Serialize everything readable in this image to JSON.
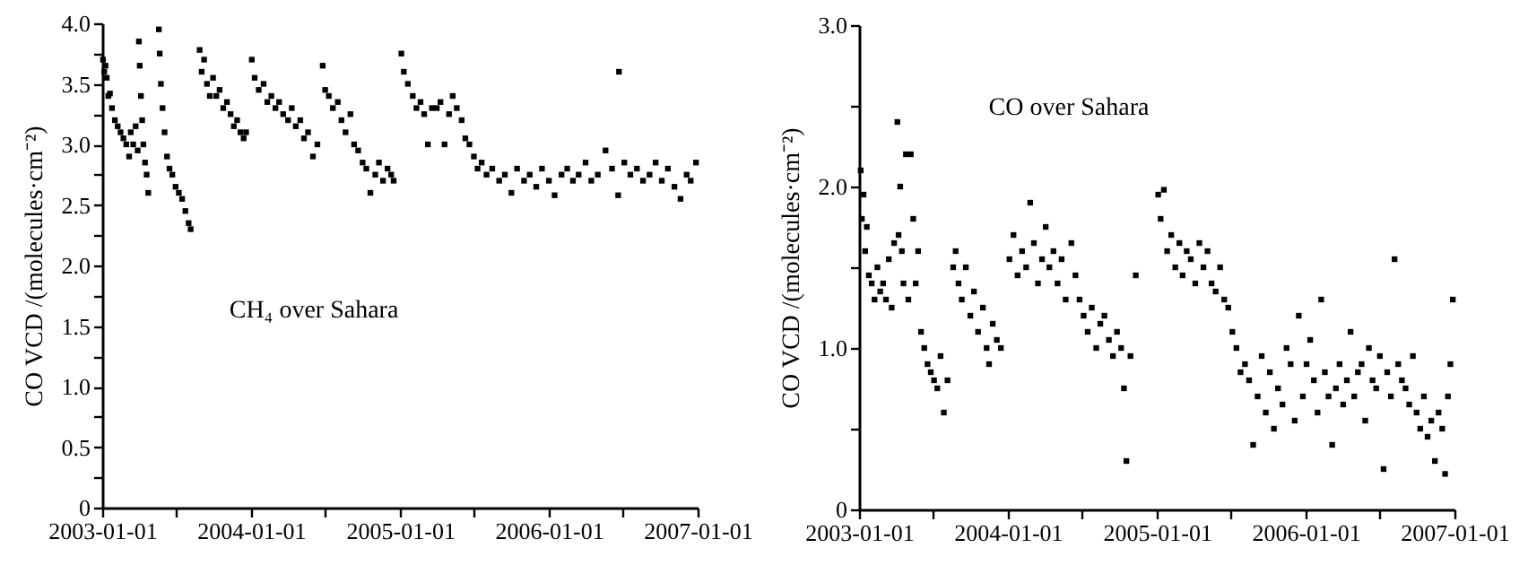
{
  "chart_data": [
    {
      "type": "scatter",
      "ylabel": "CO VCD /(molecules·cm⁻²)",
      "annotations": [
        "CH₄ over Sahara"
      ],
      "marker": "square",
      "grid": false,
      "xlim": [
        "2003-01-01",
        "2007-01-01"
      ],
      "xticks": [
        {
          "value": "2003-01-01",
          "label": "2003-01-01"
        },
        {
          "value": "2003-07-01",
          "label": null
        },
        {
          "value": "2004-01-01",
          "label": "2004-01-01"
        },
        {
          "value": "2004-07-01",
          "label": null
        },
        {
          "value": "2005-01-01",
          "label": "2005-01-01"
        },
        {
          "value": "2005-07-01",
          "label": null
        },
        {
          "value": "2006-01-01",
          "label": "2006-01-01"
        },
        {
          "value": "2006-07-01",
          "label": null
        },
        {
          "value": "2007-01-01",
          "label": "2007-01-01"
        }
      ],
      "ylim": [
        0,
        4
      ],
      "yticks": [
        0,
        {
          "value": 0.25,
          "label": null
        },
        0.5,
        {
          "value": 0.75,
          "label": null
        },
        {
          "value": 1,
          "label": "1.0"
        },
        {
          "value": 1.25,
          "label": null
        },
        1.5,
        {
          "value": 1.75,
          "label": null
        },
        {
          "value": 2,
          "label": "2.0"
        },
        {
          "value": 2.25,
          "label": null
        },
        2.5,
        {
          "value": 2.75,
          "label": null
        },
        {
          "value": 3,
          "label": "3.0"
        },
        {
          "value": 3.25,
          "label": null
        },
        3.5,
        {
          "value": 3.75,
          "label": null
        },
        {
          "value": 4,
          "label": "4.0"
        }
      ],
      "series": [
        {
          "color": "#000000",
          "x": [
            "2003-01-03",
            "2003-01-06",
            "2003-01-09",
            "2003-01-12",
            "2003-01-16",
            "2003-01-20",
            "2003-01-25",
            "2003-02-01",
            "2003-02-08",
            "2003-02-15",
            "2003-02-22",
            "2003-03-01",
            "2003-03-08",
            "2003-03-12",
            "2003-03-18",
            "2003-03-24",
            "2003-03-29",
            "2003-04-01",
            "2003-04-03",
            "2003-04-06",
            "2003-04-09",
            "2003-04-12",
            "2003-04-16",
            "2003-04-20",
            "2003-04-24",
            "2003-05-20",
            "2003-05-22",
            "2003-05-25",
            "2003-05-29",
            "2003-06-03",
            "2003-06-09",
            "2003-06-15",
            "2003-06-22",
            "2003-06-30",
            "2003-07-08",
            "2003-07-16",
            "2003-07-24",
            "2003-08-01",
            "2003-08-06",
            "2003-08-28",
            "2003-09-02",
            "2003-09-08",
            "2003-09-15",
            "2003-09-22",
            "2003-09-30",
            "2003-10-08",
            "2003-10-16",
            "2003-10-25",
            "2003-11-03",
            "2003-11-12",
            "2003-11-20",
            "2003-11-28",
            "2003-12-06",
            "2003-12-14",
            "2003-12-20",
            "2004-01-03",
            "2004-01-10",
            "2004-01-20",
            "2004-02-01",
            "2004-02-10",
            "2004-02-20",
            "2004-03-01",
            "2004-03-10",
            "2004-03-20",
            "2004-04-01",
            "2004-04-10",
            "2004-04-20",
            "2004-05-01",
            "2004-05-10",
            "2004-05-20",
            "2004-06-01",
            "2004-06-12",
            "2004-06-25",
            "2004-07-01",
            "2004-07-10",
            "2004-07-20",
            "2004-08-01",
            "2004-08-10",
            "2004-08-20",
            "2004-09-01",
            "2004-09-10",
            "2004-09-20",
            "2004-10-01",
            "2004-10-10",
            "2004-10-20",
            "2004-11-01",
            "2004-11-10",
            "2004-11-20",
            "2004-12-01",
            "2004-12-10",
            "2004-12-16",
            "2005-01-04",
            "2005-01-10",
            "2005-01-20",
            "2005-02-01",
            "2005-02-10",
            "2005-02-20",
            "2005-03-01",
            "2005-03-10",
            "2005-03-20",
            "2005-04-01",
            "2005-04-10",
            "2005-04-20",
            "2005-05-01",
            "2005-05-10",
            "2005-05-20",
            "2005-06-01",
            "2005-06-10",
            "2005-06-20",
            "2005-07-01",
            "2005-07-10",
            "2005-07-20",
            "2005-08-01",
            "2005-08-15",
            "2005-09-01",
            "2005-09-15",
            "2005-10-01",
            "2005-10-15",
            "2005-11-01",
            "2005-11-15",
            "2005-12-01",
            "2005-12-15",
            "2006-01-01",
            "2006-01-15",
            "2006-02-01",
            "2006-02-15",
            "2006-03-01",
            "2006-03-15",
            "2006-04-01",
            "2006-04-15",
            "2006-05-01",
            "2006-05-20",
            "2006-06-05",
            "2006-06-20",
            "2006-06-22",
            "2006-07-05",
            "2006-07-20",
            "2006-08-05",
            "2006-08-20",
            "2006-09-05",
            "2006-09-20",
            "2006-10-05",
            "2006-10-20",
            "2006-11-05",
            "2006-11-20",
            "2006-12-05",
            "2006-12-15",
            "2006-12-28"
          ],
          "values": [
            3.7,
            3.6,
            3.65,
            3.55,
            3.4,
            3.42,
            3.3,
            3.2,
            3.15,
            3.1,
            3.05,
            3.0,
            2.9,
            3.1,
            3.0,
            3.15,
            2.95,
            3.85,
            3.65,
            3.4,
            3.2,
            3.0,
            2.85,
            2.75,
            2.6,
            3.95,
            3.75,
            3.5,
            3.3,
            3.1,
            2.9,
            2.8,
            2.75,
            2.65,
            2.6,
            2.55,
            2.45,
            2.35,
            2.3,
            3.78,
            3.6,
            3.7,
            3.5,
            3.4,
            3.55,
            3.4,
            3.45,
            3.3,
            3.35,
            3.25,
            3.15,
            3.2,
            3.1,
            3.05,
            3.1,
            3.7,
            3.55,
            3.45,
            3.5,
            3.35,
            3.4,
            3.3,
            3.35,
            3.25,
            3.2,
            3.3,
            3.15,
            3.2,
            3.05,
            3.1,
            2.9,
            3.0,
            3.65,
            3.45,
            3.4,
            3.3,
            3.35,
            3.2,
            3.1,
            3.25,
            3.0,
            2.95,
            2.85,
            2.8,
            2.6,
            2.75,
            2.85,
            2.7,
            2.8,
            2.75,
            2.7,
            3.75,
            3.6,
            3.5,
            3.4,
            3.3,
            3.35,
            3.25,
            3.0,
            3.3,
            3.3,
            3.35,
            3.0,
            3.25,
            3.4,
            3.3,
            3.2,
            3.05,
            3.0,
            2.9,
            2.8,
            2.85,
            2.75,
            2.8,
            2.7,
            2.75,
            2.6,
            2.8,
            2.7,
            2.75,
            2.65,
            2.8,
            2.7,
            2.58,
            2.75,
            2.8,
            2.7,
            2.75,
            2.85,
            2.7,
            2.75,
            2.95,
            2.8,
            2.58,
            3.6,
            2.85,
            2.75,
            2.8,
            2.7,
            2.75,
            2.85,
            2.7,
            2.8,
            2.65,
            2.55,
            2.75,
            2.7,
            2.85
          ]
        }
      ]
    },
    {
      "type": "scatter",
      "ylabel": "CO VCD /(molecules·cm⁻²)",
      "annotations": [
        "CO over Sahara"
      ],
      "marker": "square",
      "grid": false,
      "xlim": [
        "2003-01-01",
        "2007-01-01"
      ],
      "xticks": [
        {
          "value": "2003-01-01",
          "label": "2003-01-01"
        },
        {
          "value": "2003-07-01",
          "label": null
        },
        {
          "value": "2004-01-01",
          "label": "2004-01-01"
        },
        {
          "value": "2004-07-01",
          "label": null
        },
        {
          "value": "2005-01-01",
          "label": "2005-01-01"
        },
        {
          "value": "2005-07-01",
          "label": null
        },
        {
          "value": "2006-01-01",
          "label": "2006-01-01"
        },
        {
          "value": "2006-07-01",
          "label": null
        },
        {
          "value": "2007-01-01",
          "label": "2007-01-01"
        }
      ],
      "ylim": [
        0,
        3
      ],
      "yticks": [
        0,
        {
          "value": 0.5,
          "label": null
        },
        {
          "value": 1,
          "label": "1.0"
        },
        {
          "value": 1.5,
          "label": null
        },
        {
          "value": 2,
          "label": "2.0"
        },
        {
          "value": 2.5,
          "label": null
        },
        {
          "value": 3,
          "label": "3.0"
        }
      ],
      "series": [
        {
          "color": "#000000",
          "x": [
            "2003-01-05",
            "2003-01-08",
            "2003-01-12",
            "2003-01-16",
            "2003-01-20",
            "2003-01-25",
            "2003-02-01",
            "2003-02-08",
            "2003-02-15",
            "2003-02-22",
            "2003-03-01",
            "2003-03-08",
            "2003-03-15",
            "2003-03-22",
            "2003-03-28",
            "2003-04-05",
            "2003-04-08",
            "2003-04-12",
            "2003-04-16",
            "2003-04-20",
            "2003-04-26",
            "2003-05-02",
            "2003-05-08",
            "2003-05-14",
            "2003-05-20",
            "2003-05-26",
            "2003-06-02",
            "2003-06-10",
            "2003-06-18",
            "2003-06-26",
            "2003-07-04",
            "2003-07-12",
            "2003-07-20",
            "2003-07-28",
            "2003-08-06",
            "2003-08-20",
            "2003-08-26",
            "2003-09-02",
            "2003-09-10",
            "2003-09-20",
            "2003-10-01",
            "2003-10-10",
            "2003-10-20",
            "2003-11-01",
            "2003-11-10",
            "2003-11-16",
            "2003-11-25",
            "2003-12-05",
            "2003-12-15",
            "2004-01-05",
            "2004-01-15",
            "2004-01-25",
            "2004-02-05",
            "2004-02-15",
            "2004-02-25",
            "2004-03-05",
            "2004-03-15",
            "2004-03-25",
            "2004-04-03",
            "2004-04-12",
            "2004-04-22",
            "2004-05-02",
            "2004-05-12",
            "2004-05-22",
            "2004-06-05",
            "2004-06-15",
            "2004-06-25",
            "2004-07-05",
            "2004-07-15",
            "2004-07-25",
            "2004-08-05",
            "2004-08-15",
            "2004-08-25",
            "2004-09-05",
            "2004-09-15",
            "2004-09-25",
            "2004-10-05",
            "2004-10-12",
            "2004-10-18",
            "2004-10-28",
            "2004-11-10",
            "2005-01-04",
            "2005-01-10",
            "2005-01-18",
            "2005-01-26",
            "2005-02-05",
            "2005-02-15",
            "2005-02-25",
            "2005-03-05",
            "2005-03-15",
            "2005-03-25",
            "2005-04-05",
            "2005-04-15",
            "2005-04-25",
            "2005-05-05",
            "2005-05-15",
            "2005-05-25",
            "2005-06-05",
            "2005-06-15",
            "2005-06-25",
            "2005-07-05",
            "2005-07-15",
            "2005-07-25",
            "2005-08-05",
            "2005-08-15",
            "2005-08-25",
            "2005-09-05",
            "2005-09-15",
            "2005-09-25",
            "2005-10-05",
            "2005-10-15",
            "2005-10-25",
            "2005-11-05",
            "2005-11-15",
            "2005-11-25",
            "2005-12-05",
            "2005-12-15",
            "2005-12-25",
            "2006-01-03",
            "2006-01-12",
            "2006-01-21",
            "2006-01-30",
            "2006-02-08",
            "2006-02-17",
            "2006-02-26",
            "2006-03-07",
            "2006-03-16",
            "2006-03-25",
            "2006-04-03",
            "2006-04-12",
            "2006-04-21",
            "2006-04-30",
            "2006-05-09",
            "2006-05-18",
            "2006-05-27",
            "2006-06-05",
            "2006-06-14",
            "2006-06-23",
            "2006-07-02",
            "2006-07-11",
            "2006-07-20",
            "2006-07-29",
            "2006-08-07",
            "2006-08-16",
            "2006-08-25",
            "2006-09-03",
            "2006-09-12",
            "2006-09-21",
            "2006-09-30",
            "2006-10-09",
            "2006-10-18",
            "2006-10-27",
            "2006-11-05",
            "2006-11-14",
            "2006-11-23",
            "2006-12-02",
            "2006-12-09",
            "2006-12-16",
            "2006-12-22",
            "2006-12-28"
          ],
          "values": [
            2.1,
            1.8,
            1.95,
            1.6,
            1.75,
            1.45,
            1.4,
            1.3,
            1.5,
            1.35,
            1.4,
            1.3,
            1.55,
            1.25,
            1.65,
            2.4,
            1.7,
            2.0,
            1.6,
            1.4,
            2.2,
            1.3,
            2.2,
            1.8,
            1.4,
            1.6,
            1.1,
            1.0,
            0.9,
            0.85,
            0.8,
            0.75,
            0.95,
            0.6,
            0.8,
            1.5,
            1.6,
            1.4,
            1.3,
            1.5,
            1.2,
            1.35,
            1.1,
            1.25,
            1.0,
            0.9,
            1.15,
            1.05,
            1.0,
            1.55,
            1.7,
            1.45,
            1.6,
            1.5,
            1.9,
            1.65,
            1.4,
            1.55,
            1.75,
            1.5,
            1.6,
            1.4,
            1.55,
            1.3,
            1.65,
            1.45,
            1.3,
            1.2,
            1.1,
            1.25,
            1.0,
            1.15,
            1.2,
            1.05,
            0.95,
            1.1,
            1.0,
            0.75,
            0.3,
            0.95,
            1.45,
            1.95,
            1.8,
            1.98,
            1.6,
            1.7,
            1.5,
            1.65,
            1.45,
            1.6,
            1.55,
            1.4,
            1.65,
            1.5,
            1.6,
            1.4,
            1.35,
            1.5,
            1.3,
            1.25,
            1.1,
            1.0,
            0.85,
            0.9,
            0.8,
            0.4,
            0.7,
            0.95,
            0.6,
            0.85,
            0.5,
            0.75,
            0.65,
            1.0,
            0.9,
            0.55,
            1.2,
            0.7,
            0.9,
            1.05,
            0.8,
            0.6,
            1.3,
            0.85,
            0.7,
            0.4,
            0.75,
            0.9,
            0.65,
            0.8,
            1.1,
            0.7,
            0.85,
            0.9,
            0.55,
            1.0,
            0.8,
            0.75,
            0.95,
            0.25,
            0.85,
            0.7,
            1.55,
            0.9,
            0.8,
            0.75,
            0.65,
            0.95,
            0.6,
            0.5,
            0.7,
            0.45,
            0.55,
            0.3,
            0.6,
            0.5,
            0.22,
            0.7,
            0.9,
            1.3
          ]
        }
      ]
    }
  ]
}
